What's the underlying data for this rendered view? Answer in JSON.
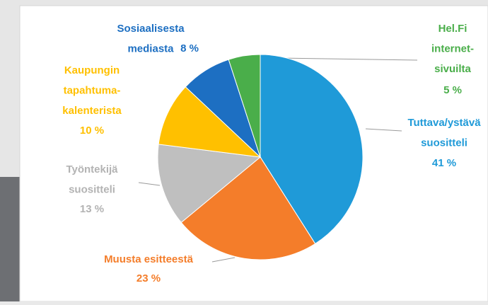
{
  "chart_data": {
    "type": "pie",
    "categories": [
      "Tuttava/ystävä\nsuositteli",
      "Muusta esitteestä",
      "Työntekijä\nsuositteli",
      "Kaupungin\ntapahtuma-\nkalenterista",
      "Sosiaalisesta\nmediasta",
      "Hel.Fi\ninternet-\nsivuilta"
    ],
    "values": [
      41,
      23,
      13,
      10,
      8,
      5
    ],
    "value_labels": [
      "41 %",
      "23 %",
      "13 %",
      "10 %",
      "8 %",
      "5 %"
    ],
    "colors": [
      "#1f9ad8",
      "#f47d2a",
      "#bfbfbf",
      "#ffc000",
      "#1d6fc2",
      "#4aae4a"
    ]
  }
}
